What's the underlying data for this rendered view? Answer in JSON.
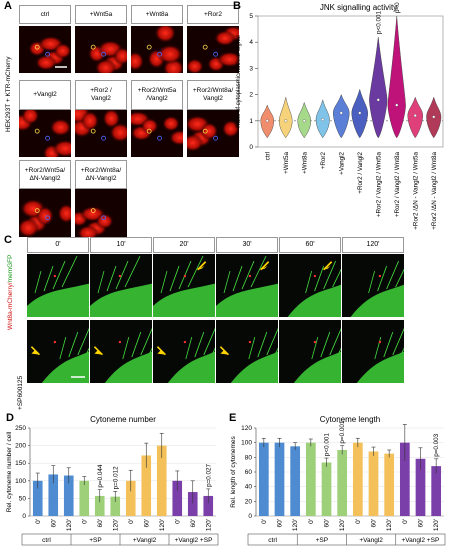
{
  "panelA": {
    "letter": "A",
    "side_label": "HEK293T + KTR-mCherry",
    "conditions": [
      "ctrl",
      "+Wnt5a",
      "+Wnt8a",
      "+Ror2",
      "+Vangl2",
      "+Ror2 /\nVangl2",
      "+Ror2/Wnt5a\n/Vangl2",
      "+Ror2/Wnt8a/\nVangl2",
      "+Ror2/Wnt5a/\nΔN-Vangl2",
      "+Ror2/Wnt8a/\nΔN-Vangl2"
    ]
  },
  "panelB": {
    "letter": "B",
    "chart_data": {
      "type": "violin",
      "title": "JNK signalling activity",
      "ylabel": "Ratio of cytoplasmic/nuclear signal",
      "ylim": [
        0,
        5
      ],
      "yticks": [
        0,
        1,
        2,
        3,
        4,
        5
      ],
      "categories": [
        "ctrl",
        "+Wnt5a",
        "+Wnt8a",
        "+Ror2",
        "+Vangl2",
        "+Ror2 / Vangl2",
        "+Ror2 / Vangl2 / Wnt5a",
        "+Ror2 / Vangl2 / Wnt8a",
        "+Ror2 /ΔN - Vangl2 / Wnt5a",
        "+Ror2 /ΔN - Vangl2 / Wnt8a"
      ],
      "medians": [
        1.0,
        1.0,
        1.0,
        1.05,
        1.3,
        1.3,
        1.8,
        1.6,
        1.2,
        1.15
      ],
      "maxima": [
        1.6,
        1.9,
        1.7,
        1.8,
        2.0,
        2.2,
        4.2,
        5.0,
        1.9,
        1.9
      ],
      "colors": [
        "#f08d6d",
        "#f6d27a",
        "#a6d98a",
        "#7fc3e8",
        "#5b7fd6",
        "#4a5fc0",
        "#6a3aa0",
        "#c0137a",
        "#e0407a",
        "#b03a58"
      ],
      "annotations": [
        {
          "index": 6,
          "text": "p<0.001"
        },
        {
          "index": 7,
          "text": "p<0.001"
        }
      ]
    }
  },
  "panelC": {
    "letter": "C",
    "times": [
      "0'",
      "10'",
      "20'",
      "30'",
      "60'",
      "120'"
    ],
    "side_label_red": "Wnt8a-mCherry/",
    "side_label_green": "memGFP",
    "row2_label": "+SP600125"
  },
  "panelD": {
    "letter": "D",
    "chart_data": {
      "type": "bar",
      "title": "Cytoneme number",
      "ylabel": "Rel. cytoneme number / cell",
      "ylim": [
        0,
        250
      ],
      "yticks": [
        0,
        50,
        100,
        150,
        200,
        250
      ],
      "categories": [
        "0'",
        "60'",
        "120'",
        "0'",
        "60'",
        "120'",
        "0'",
        "60'",
        "120'",
        "0'",
        "60'",
        "120'"
      ],
      "values": [
        100,
        118,
        115,
        100,
        57,
        55,
        100,
        172,
        200,
        100,
        68,
        57
      ],
      "errors": [
        22,
        25,
        22,
        12,
        18,
        15,
        30,
        35,
        35,
        28,
        32,
        20
      ],
      "colors": [
        "#4e8bd0",
        "#4e8bd0",
        "#4e8bd0",
        "#9ed07a",
        "#9ed07a",
        "#9ed07a",
        "#f3c05a",
        "#f3c05a",
        "#f3c05a",
        "#7a3fa8",
        "#7a3fa8",
        "#7a3fa8"
      ],
      "annotations": [
        {
          "index": 4,
          "text": "p=0.044"
        },
        {
          "index": 5,
          "text": "p=0.012"
        },
        {
          "index": 11,
          "text": "p=0.027"
        }
      ],
      "groups": [
        "ctrl",
        "+SP",
        "+Vangl2",
        "+Vangl2 +SP"
      ]
    }
  },
  "panelE": {
    "letter": "E",
    "chart_data": {
      "type": "bar",
      "title": "Cytoneme length",
      "ylabel": "Rel. length of cytonemes",
      "ylim": [
        0,
        120
      ],
      "yticks": [
        0,
        20,
        40,
        60,
        80,
        100,
        120
      ],
      "categories": [
        "0'",
        "60'",
        "120'",
        "0'",
        "60'",
        "120'",
        "0'",
        "60'",
        "120'",
        "0'",
        "60'",
        "120'"
      ],
      "values": [
        100,
        100,
        95,
        100,
        73,
        90,
        100,
        88,
        85,
        100,
        78,
        68
      ],
      "errors": [
        6,
        6,
        5,
        5,
        6,
        6,
        6,
        6,
        5,
        25,
        15,
        10
      ],
      "colors": [
        "#4e8bd0",
        "#4e8bd0",
        "#4e8bd0",
        "#9ed07a",
        "#9ed07a",
        "#9ed07a",
        "#f3c05a",
        "#f3c05a",
        "#f3c05a",
        "#7a3fa8",
        "#7a3fa8",
        "#7a3fa8"
      ],
      "annotations": [
        {
          "index": 4,
          "text": "p<0.001"
        },
        {
          "index": 5,
          "text": "p=0.001"
        },
        {
          "index": 11,
          "text": "p=0.003"
        }
      ],
      "groups": [
        "ctrl",
        "+SP",
        "+Vangl2",
        "+Vangl2 +SP"
      ]
    }
  }
}
